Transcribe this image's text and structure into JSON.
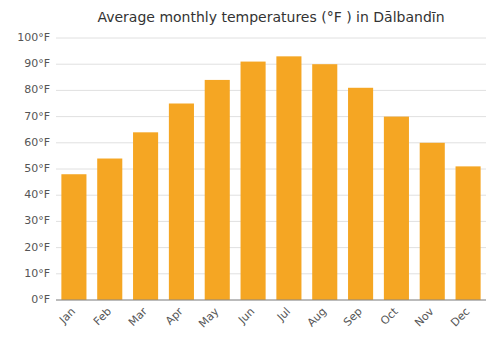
{
  "chart_data": {
    "type": "bar",
    "title": "Average monthly temperatures (°F ) in Dālbandīn",
    "categories": [
      "Jan",
      "Feb",
      "Mar",
      "Apr",
      "May",
      "Jun",
      "Jul",
      "Aug",
      "Sep",
      "Oct",
      "Nov",
      "Dec"
    ],
    "values": [
      48,
      54,
      64,
      75,
      84,
      91,
      93,
      90,
      81,
      70,
      60,
      51
    ],
    "color": "#F5A623",
    "ylim": [
      0,
      100
    ],
    "yticks": [
      {
        "value": 0,
        "label": "0°F"
      },
      {
        "value": 10,
        "label": "10°F"
      },
      {
        "value": 20,
        "label": "20°F"
      },
      {
        "value": 30,
        "label": "30°F"
      },
      {
        "value": 40,
        "label": "40°F"
      },
      {
        "value": 50,
        "label": "50°F"
      },
      {
        "value": 60,
        "label": "60°F"
      },
      {
        "value": 70,
        "label": "70°F"
      },
      {
        "value": 80,
        "label": "80°F"
      },
      {
        "value": 90,
        "label": "90°F"
      },
      {
        "value": 100,
        "label": "100°F"
      }
    ],
    "grid": true
  }
}
